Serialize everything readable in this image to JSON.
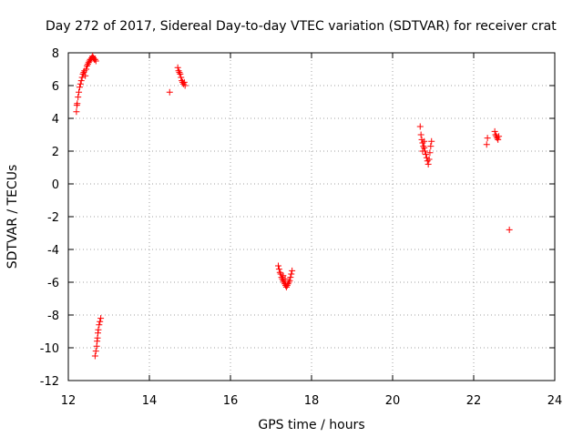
{
  "chart_data": {
    "type": "scatter",
    "title": "Day 272 of 2017, Sidereal Day-to-day VTEC variation (SDTVAR) for receiver crat",
    "xlabel": "GPS time / hours",
    "ylabel": "SDTVAR / TECUs",
    "xlim": [
      12,
      24
    ],
    "ylim": [
      -12,
      8
    ],
    "xticks": [
      12,
      14,
      16,
      18,
      20,
      22,
      24
    ],
    "yticks": [
      -12,
      -10,
      -8,
      -6,
      -4,
      -2,
      0,
      2,
      4,
      6,
      8
    ],
    "grid": true,
    "marker": "+",
    "series_color": "#ff0000",
    "points": [
      [
        12.2,
        4.4
      ],
      [
        12.21,
        4.8
      ],
      [
        12.22,
        4.9
      ],
      [
        12.24,
        5.3
      ],
      [
        12.26,
        5.6
      ],
      [
        12.28,
        5.9
      ],
      [
        12.3,
        6.1
      ],
      [
        12.32,
        6.3
      ],
      [
        12.34,
        6.5
      ],
      [
        12.36,
        6.7
      ],
      [
        12.38,
        6.8
      ],
      [
        12.4,
        6.9
      ],
      [
        12.42,
        6.6
      ],
      [
        12.44,
        7.0
      ],
      [
        12.46,
        7.2
      ],
      [
        12.48,
        7.3
      ],
      [
        12.5,
        7.4
      ],
      [
        12.52,
        7.5
      ],
      [
        12.54,
        7.6
      ],
      [
        12.56,
        7.6
      ],
      [
        12.58,
        7.7
      ],
      [
        12.6,
        7.8
      ],
      [
        12.62,
        7.7
      ],
      [
        12.64,
        7.6
      ],
      [
        12.66,
        7.6
      ],
      [
        12.68,
        7.5
      ],
      [
        12.66,
        -10.5
      ],
      [
        12.68,
        -10.2
      ],
      [
        12.7,
        -9.9
      ],
      [
        12.71,
        -9.6
      ],
      [
        12.72,
        -9.4
      ],
      [
        12.73,
        -9.1
      ],
      [
        12.74,
        -8.9
      ],
      [
        12.76,
        -8.6
      ],
      [
        12.78,
        -8.4
      ],
      [
        12.8,
        -8.2
      ],
      [
        14.5,
        5.6
      ],
      [
        14.7,
        7.1
      ],
      [
        14.72,
        6.9
      ],
      [
        14.74,
        6.8
      ],
      [
        14.76,
        6.7
      ],
      [
        14.78,
        6.5
      ],
      [
        14.8,
        6.3
      ],
      [
        14.82,
        6.2
      ],
      [
        14.84,
        6.1
      ],
      [
        14.86,
        6.2
      ],
      [
        14.88,
        6.0
      ],
      [
        17.18,
        -5.0
      ],
      [
        17.2,
        -5.2
      ],
      [
        17.22,
        -5.4
      ],
      [
        17.24,
        -5.5
      ],
      [
        17.26,
        -5.7
      ],
      [
        17.28,
        -5.8
      ],
      [
        17.3,
        -5.9
      ],
      [
        17.32,
        -6.0
      ],
      [
        17.34,
        -6.1
      ],
      [
        17.36,
        -6.2
      ],
      [
        17.38,
        -6.3
      ],
      [
        17.4,
        -6.2
      ],
      [
        17.42,
        -6.1
      ],
      [
        17.44,
        -6.0
      ],
      [
        17.46,
        -5.9
      ],
      [
        17.48,
        -5.7
      ],
      [
        17.5,
        -5.5
      ],
      [
        17.52,
        -5.3
      ],
      [
        17.3,
        -5.6
      ],
      [
        17.35,
        -5.8
      ],
      [
        20.68,
        3.5
      ],
      [
        20.7,
        3.0
      ],
      [
        20.72,
        2.7
      ],
      [
        20.74,
        2.5
      ],
      [
        20.76,
        2.3
      ],
      [
        20.78,
        2.2
      ],
      [
        20.8,
        2.0
      ],
      [
        20.82,
        1.8
      ],
      [
        20.84,
        1.6
      ],
      [
        20.86,
        1.4
      ],
      [
        20.88,
        1.2
      ],
      [
        20.9,
        1.5
      ],
      [
        20.92,
        1.9
      ],
      [
        20.94,
        2.3
      ],
      [
        20.96,
        2.6
      ],
      [
        20.78,
        2.6
      ],
      [
        20.74,
        2.0
      ],
      [
        22.32,
        2.4
      ],
      [
        22.34,
        2.8
      ],
      [
        22.52,
        3.2
      ],
      [
        22.54,
        3.0
      ],
      [
        22.56,
        2.9
      ],
      [
        22.58,
        2.8
      ],
      [
        22.6,
        2.7
      ],
      [
        22.62,
        2.9
      ],
      [
        22.88,
        -2.8
      ]
    ]
  }
}
